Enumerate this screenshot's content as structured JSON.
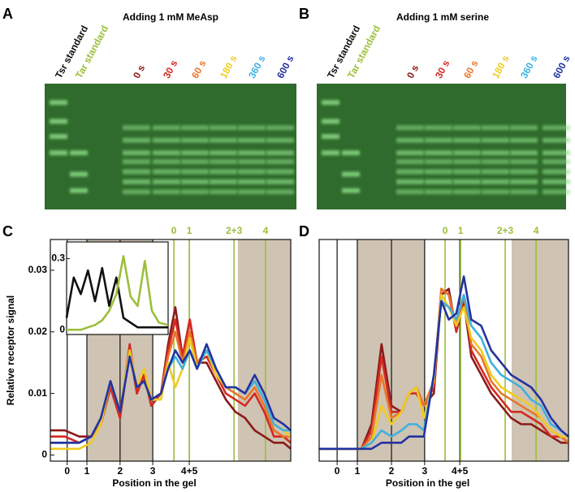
{
  "gels": [
    {
      "letter": "A",
      "title": "Adding 1 mM MeAsp",
      "lanes": [
        {
          "text": "Tsr standard",
          "color": "#111111"
        },
        {
          "text": "Tar standard",
          "color": "#9cbf3a"
        },
        {
          "text": "0 s",
          "color": "#8b1a1a"
        },
        {
          "text": "30 s",
          "color": "#d42a20"
        },
        {
          "text": "60 s",
          "color": "#e8762a"
        },
        {
          "text": "180 s",
          "color": "#f0cc20"
        },
        {
          "text": "360 s",
          "color": "#3fb0e0"
        },
        {
          "text": "600 s",
          "color": "#2432a0"
        }
      ]
    },
    {
      "letter": "B",
      "title": "Adding 1 mM serine",
      "lanes": [
        {
          "text": "Tsr standard",
          "color": "#111111"
        },
        {
          "text": "Tar standard",
          "color": "#9cbf3a"
        },
        {
          "text": "0 s",
          "color": "#8b1a1a"
        },
        {
          "text": "30 s",
          "color": "#d42a20"
        },
        {
          "text": "60 s",
          "color": "#e8762a"
        },
        {
          "text": "180 s",
          "color": "#f0cc20"
        },
        {
          "text": "360 s",
          "color": "#3fb0e0"
        },
        {
          "text": "600 s",
          "color": "#2432a0"
        }
      ]
    }
  ],
  "chart_data": [
    {
      "type": "line",
      "letter": "C",
      "ylabel": "Relative receptor signal",
      "xlabel": "Position in the gel",
      "xlim": [
        0,
        100
      ],
      "ylim": [
        -0.001,
        0.035
      ],
      "xticks": [
        {
          "value": 7,
          "label": "0"
        },
        {
          "value": 15.2,
          "label": "1"
        },
        {
          "value": 29,
          "label": "2"
        },
        {
          "value": 42.6,
          "label": "3"
        },
        {
          "value": 57.8,
          "label": "4+5"
        }
      ],
      "yticks": [
        0,
        0.01,
        0.02,
        0.03
      ],
      "markers": [
        {
          "value": 51.4,
          "label": "0"
        },
        {
          "value": 57.8,
          "label": "1"
        },
        {
          "value": 76.4,
          "label": "2+3"
        },
        {
          "value": 89.5,
          "label": "4"
        }
      ],
      "marker_color": "#9cbf3a",
      "shade_color": "#cfc3b3",
      "shaded": [
        [
          15.2,
          42.6
        ],
        [
          78,
          100
        ]
      ],
      "x": [
        0,
        6,
        12,
        17,
        21,
        25,
        29,
        33,
        36,
        39,
        42,
        46,
        49,
        52,
        55,
        58,
        61,
        65,
        69,
        73,
        77,
        81,
        85,
        89,
        93,
        97,
        100
      ],
      "series": [
        {
          "color": "#8b1a1a",
          "values": [
            0.004,
            0.004,
            0.003,
            0.003,
            0.005,
            0.011,
            0.006,
            0.017,
            0.01,
            0.013,
            0.008,
            0.01,
            0.018,
            0.024,
            0.016,
            0.022,
            0.015,
            0.015,
            0.012,
            0.009,
            0.007,
            0.006,
            0.004,
            0.003,
            0.002,
            0.002,
            0.001
          ]
        },
        {
          "color": "#d42a20",
          "values": [
            0.003,
            0.003,
            0.002,
            0.003,
            0.005,
            0.011,
            0.006,
            0.018,
            0.01,
            0.013,
            0.008,
            0.01,
            0.017,
            0.022,
            0.016,
            0.022,
            0.015,
            0.016,
            0.013,
            0.01,
            0.009,
            0.008,
            0.01,
            0.007,
            0.003,
            0.003,
            0.002
          ]
        },
        {
          "color": "#e8762a",
          "values": [
            0.002,
            0.002,
            0.002,
            0.003,
            0.005,
            0.012,
            0.007,
            0.017,
            0.011,
            0.014,
            0.009,
            0.01,
            0.016,
            0.02,
            0.015,
            0.02,
            0.015,
            0.017,
            0.013,
            0.011,
            0.01,
            0.009,
            0.011,
            0.008,
            0.004,
            0.003,
            0.003
          ]
        },
        {
          "color": "#f0cc20",
          "values": [
            0.001,
            0.001,
            0.001,
            0.002,
            0.005,
            0.012,
            0.007,
            0.017,
            0.011,
            0.014,
            0.009,
            0.009,
            0.015,
            0.011,
            0.014,
            0.019,
            0.014,
            0.017,
            0.013,
            0.011,
            0.011,
            0.01,
            0.012,
            0.009,
            0.005,
            0.004,
            0.003
          ]
        },
        {
          "color": "#3fb0e0",
          "values": [
            0.002,
            0.002,
            0.002,
            0.003,
            0.006,
            0.012,
            0.007,
            0.016,
            0.011,
            0.012,
            0.009,
            0.01,
            0.014,
            0.016,
            0.014,
            0.017,
            0.014,
            0.017,
            0.014,
            0.011,
            0.011,
            0.01,
            0.012,
            0.009,
            0.005,
            0.004,
            0.004
          ]
        },
        {
          "color": "#2432a0",
          "values": [
            0.002,
            0.002,
            0.002,
            0.003,
            0.006,
            0.012,
            0.007,
            0.016,
            0.011,
            0.012,
            0.009,
            0.01,
            0.014,
            0.017,
            0.015,
            0.017,
            0.014,
            0.018,
            0.014,
            0.011,
            0.011,
            0.01,
            0.013,
            0.01,
            0.006,
            0.005,
            0.004
          ]
        }
      ],
      "inset": {
        "xlim": [
          0,
          100
        ],
        "ylim": [
          -0.02,
          0.37
        ],
        "yticks": [
          0,
          0.3
        ],
        "x": [
          0,
          7,
          14,
          21,
          28,
          35,
          42,
          49,
          56,
          63,
          70,
          77,
          84,
          91,
          100
        ],
        "series": [
          {
            "color": "#111111",
            "values": [
              0.05,
              0.22,
              0.15,
              0.25,
              0.12,
              0.26,
              0.1,
              0.22,
              0.05,
              0.03,
              0.01,
              0.01,
              0.01,
              0.01,
              0.01
            ]
          },
          {
            "color": "#9cbf3a",
            "values": [
              0.0,
              0.0,
              0.0,
              0.01,
              0.02,
              0.04,
              0.08,
              0.15,
              0.31,
              0.14,
              0.1,
              0.29,
              0.08,
              0.03,
              0.02
            ]
          }
        ]
      }
    },
    {
      "type": "line",
      "letter": "D",
      "xlabel": "Position in the gel",
      "xlim": [
        0,
        100
      ],
      "ylim": [
        -0.001,
        0.035
      ],
      "xticks": [
        {
          "value": 7.2,
          "label": "0"
        },
        {
          "value": 15.3,
          "label": "1"
        },
        {
          "value": 29,
          "label": "2"
        },
        {
          "value": 42.3,
          "label": "3"
        },
        {
          "value": 56.4,
          "label": "4+5"
        }
      ],
      "markers": [
        {
          "value": 50.5,
          "label": "0"
        },
        {
          "value": 56.7,
          "label": "1"
        },
        {
          "value": 74.6,
          "label": "2+3"
        },
        {
          "value": 87,
          "label": "4"
        }
      ],
      "marker_color": "#9cbf3a",
      "shade_color": "#cfc3b3",
      "shaded": [
        [
          15.3,
          42.3
        ],
        [
          77.2,
          100
        ]
      ],
      "x": [
        0,
        6,
        12,
        17,
        21,
        25,
        29,
        33,
        36,
        39,
        42,
        46,
        49,
        52,
        55,
        58,
        61,
        65,
        69,
        73,
        77,
        81,
        85,
        89,
        93,
        97,
        100
      ],
      "series": [
        {
          "color": "#8b1a1a",
          "values": [
            0.001,
            0.001,
            0.001,
            0.001,
            0.005,
            0.018,
            0.008,
            0.007,
            0.01,
            0.011,
            0.008,
            0.01,
            0.026,
            0.027,
            0.02,
            0.025,
            0.016,
            0.013,
            0.01,
            0.008,
            0.006,
            0.005,
            0.005,
            0.004,
            0.003,
            0.002,
            0.002
          ]
        },
        {
          "color": "#d42a20",
          "values": [
            0.001,
            0.001,
            0.001,
            0.001,
            0.004,
            0.016,
            0.007,
            0.007,
            0.01,
            0.01,
            0.008,
            0.011,
            0.027,
            0.026,
            0.02,
            0.026,
            0.017,
            0.014,
            0.011,
            0.009,
            0.007,
            0.007,
            0.006,
            0.005,
            0.003,
            0.003,
            0.002
          ]
        },
        {
          "color": "#e8762a",
          "values": [
            0.001,
            0.001,
            0.001,
            0.001,
            0.003,
            0.013,
            0.006,
            0.007,
            0.01,
            0.011,
            0.008,
            0.012,
            0.027,
            0.026,
            0.021,
            0.026,
            0.018,
            0.016,
            0.012,
            0.01,
            0.009,
            0.008,
            0.007,
            0.006,
            0.004,
            0.003,
            0.002
          ]
        },
        {
          "color": "#f0cc20",
          "values": [
            0.001,
            0.001,
            0.001,
            0.001,
            0.002,
            0.008,
            0.005,
            0.007,
            0.01,
            0.011,
            0.006,
            0.012,
            0.026,
            0.024,
            0.021,
            0.024,
            0.019,
            0.017,
            0.013,
            0.011,
            0.01,
            0.009,
            0.008,
            0.006,
            0.004,
            0.003,
            0.003
          ]
        },
        {
          "color": "#3fb0e0",
          "values": [
            0.001,
            0.001,
            0.001,
            0.001,
            0.002,
            0.004,
            0.003,
            0.004,
            0.005,
            0.005,
            0.004,
            0.013,
            0.025,
            0.024,
            0.022,
            0.026,
            0.021,
            0.019,
            0.015,
            0.013,
            0.012,
            0.011,
            0.009,
            0.008,
            0.005,
            0.004,
            0.003
          ]
        },
        {
          "color": "#2432a0",
          "values": [
            0.001,
            0.001,
            0.001,
            0.001,
            0.001,
            0.002,
            0.002,
            0.002,
            0.003,
            0.003,
            0.003,
            0.013,
            0.025,
            0.022,
            0.023,
            0.029,
            0.022,
            0.021,
            0.017,
            0.015,
            0.013,
            0.012,
            0.011,
            0.009,
            0.006,
            0.004,
            0.003
          ]
        }
      ]
    }
  ]
}
